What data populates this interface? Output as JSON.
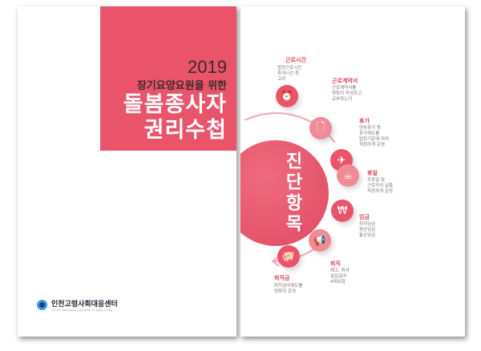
{
  "cover": {
    "year": "2019",
    "subtitle": "장기요양요원을 위한",
    "title1": "돌봄종사자",
    "title2": "권리수첩",
    "org": "인천고령사회대응센터",
    "org_en": "Incheon Metropolitan City Center for Aging Society",
    "accent": "#e9546b"
  },
  "inner": {
    "center_title": "진단항목",
    "items": [
      {
        "label": "근로시간",
        "desc": [
          "법정근로시간",
          "휴게시간 등",
          "고려"
        ],
        "icon": "alarm-clock-icon"
      },
      {
        "label": "근로계약서",
        "desc": [
          "근로계약서를",
          "명확히 작성하고",
          "교부하는지"
        ],
        "icon": "document-icon"
      },
      {
        "label": "휴가",
        "desc": [
          "연차휴가 등",
          "휴가제도를",
          "법정기준에 따라",
          "적정하게 운영"
        ],
        "icon": "airplane-icon"
      },
      {
        "label": "휴일",
        "desc": [
          "주휴일 및",
          "근로자의 날을",
          "적정하게 운영"
        ],
        "icon": "coffee-cup-icon"
      },
      {
        "label": "임금",
        "desc": [
          "최저임금",
          "평균임금",
          "통상임금"
        ],
        "icon": "won-coin-icon"
      },
      {
        "label": "퇴직",
        "desc": [
          "해고, 퇴사",
          "실업급여",
          "4대보험"
        ],
        "icon": "megaphone-icon"
      },
      {
        "label": "퇴직금",
        "desc": [
          "퇴직금여제도를",
          "명확히 운영"
        ],
        "icon": "piggy-bank-icon"
      }
    ]
  }
}
